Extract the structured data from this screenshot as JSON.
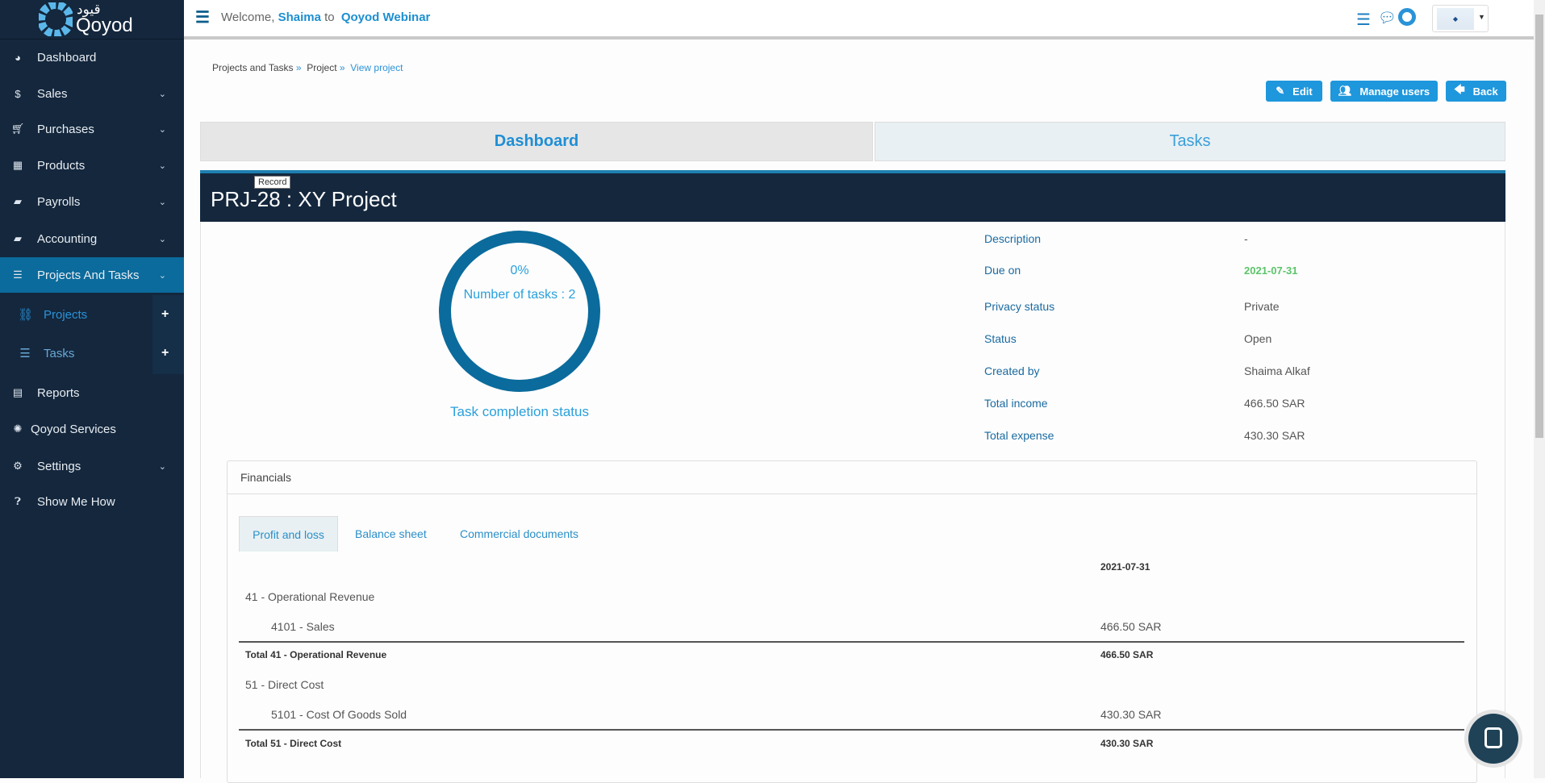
{
  "app": {
    "logo_text": "Qoyod",
    "logo_arabic": "قيود"
  },
  "topbar": {
    "welcome": "Welcome,",
    "user": "Shaima",
    "to": "to",
    "company": "Qoyod Webinar"
  },
  "sidebar": {
    "items": [
      {
        "label": "Dashboard",
        "icon": "dashboard-icon"
      },
      {
        "label": "Sales",
        "icon": "dollar-icon"
      },
      {
        "label": "Purchases",
        "icon": "cart-icon"
      },
      {
        "label": "Products",
        "icon": "grid-icon"
      },
      {
        "label": "Payrolls",
        "icon": "folder-icon"
      },
      {
        "label": "Accounting",
        "icon": "folder-open-icon"
      },
      {
        "label": "Projects And Tasks",
        "icon": "list-icon"
      },
      {
        "label": "Reports",
        "icon": "file-icon"
      },
      {
        "label": "Qoyod Services",
        "icon": "services-icon"
      },
      {
        "label": "Settings",
        "icon": "gear-icon"
      },
      {
        "label": "Show Me How",
        "icon": "question-icon"
      }
    ],
    "submenu": [
      {
        "label": "Projects"
      },
      {
        "label": "Tasks"
      }
    ]
  },
  "breadcrumb": [
    "Projects and Tasks",
    "Project",
    "View project"
  ],
  "actions": {
    "edit": "Edit",
    "manage_users": "Manage users",
    "back": "Back"
  },
  "tabs": [
    "Dashboard",
    "Tasks"
  ],
  "tooltip": "Record",
  "project": {
    "title": "PRJ-28 : XY Project",
    "progress_pct": "0%",
    "tasks_count": "Number of tasks : 2",
    "completion_label": "Task completion status",
    "details": [
      [
        "Description",
        "-"
      ],
      [
        "Due on",
        "2021-07-31"
      ],
      [
        "Privacy status",
        "Private"
      ],
      [
        "Status",
        "Open"
      ],
      [
        "Created by",
        "Shaima Alkaf"
      ],
      [
        "Total income",
        "466.50 SAR"
      ],
      [
        "Total expense",
        "430.30 SAR"
      ]
    ]
  },
  "financials": {
    "title": "Financials",
    "tabs": [
      "Profit and loss",
      "Balance sheet",
      "Commercial documents"
    ],
    "column": "2021-07-31",
    "rows": [
      [
        "41 - Operational Revenue",
        ""
      ],
      [
        "4101 - Sales",
        "466.50 SAR"
      ],
      [
        "Total 41 - Operational Revenue",
        "466.50 SAR"
      ],
      [
        "51 - Direct Cost",
        ""
      ],
      [
        "5101 - Cost Of Goods Sold",
        "430.30 SAR"
      ],
      [
        "Total 51 - Direct Cost",
        "430.30 SAR"
      ]
    ]
  },
  "colors": {
    "sidebar": "#14273d",
    "accent": "#1e97dd",
    "active": "#0b6b9c",
    "due_date": "#5cc46a"
  }
}
